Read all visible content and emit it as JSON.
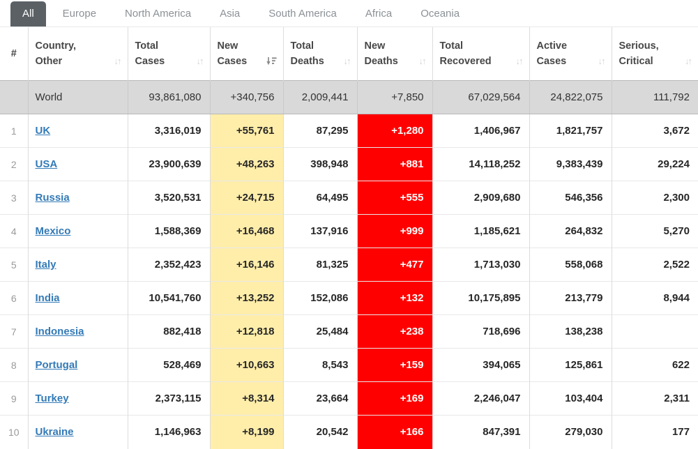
{
  "tabs": [
    {
      "label": "All",
      "active": true
    },
    {
      "label": "Europe",
      "active": false
    },
    {
      "label": "North America",
      "active": false
    },
    {
      "label": "Asia",
      "active": false
    },
    {
      "label": "South America",
      "active": false
    },
    {
      "label": "Africa",
      "active": false
    },
    {
      "label": "Oceania",
      "active": false
    }
  ],
  "table": {
    "columns": [
      {
        "id": "rank",
        "line1": "#",
        "line2": "",
        "sort": "none"
      },
      {
        "id": "country",
        "line1": "Country,",
        "line2": "Other",
        "sort": "sortable"
      },
      {
        "id": "total_cases",
        "line1": "Total",
        "line2": "Cases",
        "sort": "sortable"
      },
      {
        "id": "new_cases",
        "line1": "New",
        "line2": "Cases",
        "sort": "active-desc"
      },
      {
        "id": "total_deaths",
        "line1": "Total",
        "line2": "Deaths",
        "sort": "sortable"
      },
      {
        "id": "new_deaths",
        "line1": "New",
        "line2": "Deaths",
        "sort": "sortable"
      },
      {
        "id": "total_recovered",
        "line1": "Total",
        "line2": "Recovered",
        "sort": "sortable"
      },
      {
        "id": "active_cases",
        "line1": "Active",
        "line2": "Cases",
        "sort": "sortable"
      },
      {
        "id": "serious_critical",
        "line1": "Serious,",
        "line2": "Critical",
        "sort": "sortable"
      }
    ],
    "world_row": {
      "rank": "",
      "country": "World",
      "total_cases": "93,861,080",
      "new_cases": "+340,756",
      "total_deaths": "2,009,441",
      "new_deaths": "+7,850",
      "total_recovered": "67,029,564",
      "active_cases": "24,822,075",
      "serious_critical": "111,792"
    },
    "rows": [
      {
        "rank": "1",
        "country": "UK",
        "total_cases": "3,316,019",
        "new_cases": "+55,761",
        "total_deaths": "87,295",
        "new_deaths": "+1,280",
        "total_recovered": "1,406,967",
        "active_cases": "1,821,757",
        "serious_critical": "3,672"
      },
      {
        "rank": "2",
        "country": "USA",
        "total_cases": "23,900,639",
        "new_cases": "+48,263",
        "total_deaths": "398,948",
        "new_deaths": "+881",
        "total_recovered": "14,118,252",
        "active_cases": "9,383,439",
        "serious_critical": "29,224"
      },
      {
        "rank": "3",
        "country": "Russia",
        "total_cases": "3,520,531",
        "new_cases": "+24,715",
        "total_deaths": "64,495",
        "new_deaths": "+555",
        "total_recovered": "2,909,680",
        "active_cases": "546,356",
        "serious_critical": "2,300"
      },
      {
        "rank": "4",
        "country": "Mexico",
        "total_cases": "1,588,369",
        "new_cases": "+16,468",
        "total_deaths": "137,916",
        "new_deaths": "+999",
        "total_recovered": "1,185,621",
        "active_cases": "264,832",
        "serious_critical": "5,270"
      },
      {
        "rank": "5",
        "country": "Italy",
        "total_cases": "2,352,423",
        "new_cases": "+16,146",
        "total_deaths": "81,325",
        "new_deaths": "+477",
        "total_recovered": "1,713,030",
        "active_cases": "558,068",
        "serious_critical": "2,522"
      },
      {
        "rank": "6",
        "country": "India",
        "total_cases": "10,541,760",
        "new_cases": "+13,252",
        "total_deaths": "152,086",
        "new_deaths": "+132",
        "total_recovered": "10,175,895",
        "active_cases": "213,779",
        "serious_critical": "8,944"
      },
      {
        "rank": "7",
        "country": "Indonesia",
        "total_cases": "882,418",
        "new_cases": "+12,818",
        "total_deaths": "25,484",
        "new_deaths": "+238",
        "total_recovered": "718,696",
        "active_cases": "138,238",
        "serious_critical": ""
      },
      {
        "rank": "8",
        "country": "Portugal",
        "total_cases": "528,469",
        "new_cases": "+10,663",
        "total_deaths": "8,543",
        "new_deaths": "+159",
        "total_recovered": "394,065",
        "active_cases": "125,861",
        "serious_critical": "622"
      },
      {
        "rank": "9",
        "country": "Turkey",
        "total_cases": "2,373,115",
        "new_cases": "+8,314",
        "total_deaths": "23,664",
        "new_deaths": "+169",
        "total_recovered": "2,246,047",
        "active_cases": "103,404",
        "serious_critical": "2,311"
      },
      {
        "rank": "10",
        "country": "Ukraine",
        "total_cases": "1,146,963",
        "new_cases": "+8,199",
        "total_deaths": "20,542",
        "new_deaths": "+166",
        "total_recovered": "847,391",
        "active_cases": "279,030",
        "serious_critical": "177"
      }
    ]
  },
  "colors": {
    "link_blue": "#337ab7",
    "new_cases_bg": "#ffeeaa",
    "new_deaths_bg": "#ff0000",
    "active_tab_bg": "#5b6065",
    "world_row_bg": "#d9d9d9"
  }
}
